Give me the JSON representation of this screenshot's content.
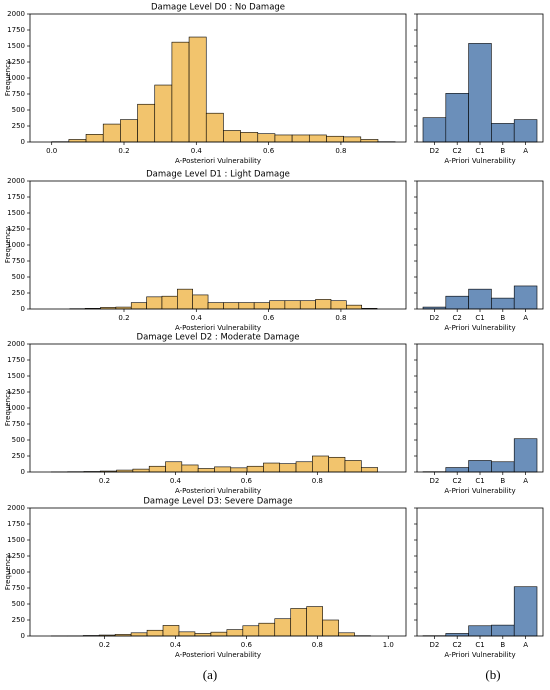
{
  "chart_data": [
    {
      "type": "histogram",
      "title": "Damage Level D0 : No Damage",
      "xlabel": "A-Posteriori Vulnerability",
      "ylabel": "Frequency",
      "color": "#f2c46d",
      "bins": [
        0,
        0.0475,
        0.095,
        0.1425,
        0.19,
        0.2375,
        0.285,
        0.3325,
        0.38,
        0.4275,
        0.475,
        0.5225,
        0.57,
        0.6175,
        0.665,
        0.7125,
        0.76,
        0.8075,
        0.855,
        0.9025,
        0.95
      ],
      "values": [
        5,
        40,
        120,
        280,
        350,
        590,
        890,
        1560,
        1640,
        450,
        180,
        150,
        130,
        110,
        110,
        110,
        90,
        80,
        40,
        5
      ],
      "xlim": [
        -0.06,
        0.98
      ],
      "xticks": [
        {
          "value": 0,
          "label": "0.0"
        },
        0.2,
        0.4,
        0.6,
        0.8
      ],
      "ylim": [
        0,
        2000
      ],
      "yticks": [
        0,
        250,
        500,
        750,
        1000,
        1250,
        1500,
        1750,
        2000
      ]
    },
    {
      "type": "bar",
      "xlabel": "A-Priori Vulnerability",
      "color": "#6b8fba",
      "categories": [
        "D2",
        "C2",
        "C1",
        "B",
        "A"
      ],
      "values": [
        380,
        760,
        1540,
        290,
        350
      ],
      "ylim": [
        0,
        2000
      ],
      "yticks": [
        0,
        250,
        500,
        750,
        1000,
        1250,
        1500,
        1750,
        2000
      ],
      "ytick_labels": false
    },
    {
      "type": "histogram",
      "title": "Damage Level D1 : Light Damage",
      "xlabel": "A-Posteriori Vulnerability",
      "ylabel": "Frequency",
      "color": "#f2c46d",
      "bins": [
        0.05,
        0.0925,
        0.135,
        0.1775,
        0.22,
        0.2625,
        0.305,
        0.3475,
        0.39,
        0.4325,
        0.475,
        0.5175,
        0.56,
        0.6025,
        0.645,
        0.6875,
        0.73,
        0.7725,
        0.815,
        0.8575,
        0.9
      ],
      "values": [
        5,
        10,
        25,
        30,
        100,
        190,
        200,
        310,
        220,
        100,
        100,
        100,
        100,
        130,
        130,
        130,
        150,
        130,
        60,
        10
      ],
      "xlim": [
        -0.06,
        0.98
      ],
      "xticks": [
        0.2,
        0.4,
        0.6,
        0.8
      ],
      "ylim": [
        0,
        2000
      ],
      "yticks": [
        0,
        250,
        500,
        750,
        1000,
        1250,
        1500,
        1750,
        2000
      ]
    },
    {
      "type": "bar",
      "xlabel": "A-Priori Vulnerability",
      "color": "#6b8fba",
      "categories": [
        "D2",
        "C2",
        "C1",
        "B",
        "A"
      ],
      "values": [
        30,
        200,
        310,
        170,
        360
      ],
      "ylim": [
        0,
        2000
      ],
      "yticks": [
        0,
        250,
        500,
        750,
        1000,
        1250,
        1500,
        1750,
        2000
      ],
      "ytick_labels": false
    },
    {
      "type": "histogram",
      "title": "Damage Level D2 : Moderate Damage",
      "xlabel": "A-Posteriori Vulnerability",
      "ylabel": "Frequency",
      "color": "#f2c46d",
      "bins": [
        0.05,
        0.096,
        0.142,
        0.188,
        0.234,
        0.28,
        0.326,
        0.372,
        0.418,
        0.464,
        0.51,
        0.556,
        0.602,
        0.648,
        0.694,
        0.74,
        0.786,
        0.832,
        0.878,
        0.924,
        0.97
      ],
      "values": [
        3,
        5,
        8,
        15,
        30,
        45,
        90,
        160,
        110,
        55,
        80,
        65,
        90,
        140,
        130,
        160,
        250,
        230,
        180,
        70
      ],
      "xlim": [
        -0.01,
        1.05
      ],
      "xticks": [
        0.2,
        0.4,
        0.6,
        0.8
      ],
      "ylim": [
        0,
        2000
      ],
      "yticks": [
        0,
        250,
        500,
        750,
        1000,
        1250,
        1500,
        1750,
        2000
      ]
    },
    {
      "type": "bar",
      "xlabel": "A-Priori Vulnerability",
      "color": "#6b8fba",
      "categories": [
        "D2",
        "C2",
        "C1",
        "B",
        "A"
      ],
      "values": [
        5,
        70,
        180,
        160,
        520
      ],
      "ylim": [
        0,
        2000
      ],
      "yticks": [
        0,
        250,
        500,
        750,
        1000,
        1250,
        1500,
        1750,
        2000
      ],
      "ytick_labels": false
    },
    {
      "type": "histogram",
      "title": "Damage Level D3: Severe Damage",
      "xlabel": "A-Posteriori Vulnerability",
      "ylabel": "Frequency",
      "color": "#f2c46d",
      "bins": [
        0.05,
        0.095,
        0.14,
        0.185,
        0.23,
        0.275,
        0.32,
        0.365,
        0.41,
        0.455,
        0.5,
        0.545,
        0.59,
        0.635,
        0.68,
        0.725,
        0.77,
        0.815,
        0.86,
        0.905,
        0.95
      ],
      "values": [
        2,
        3,
        8,
        15,
        25,
        50,
        90,
        165,
        65,
        40,
        60,
        100,
        160,
        200,
        270,
        430,
        460,
        250,
        50,
        5
      ],
      "xlim": [
        -0.01,
        1.05
      ],
      "xticks": [
        0.2,
        0.4,
        0.6,
        0.8,
        {
          "value": 1,
          "label": "1.0"
        }
      ],
      "ylim": [
        0,
        2000
      ],
      "yticks": [
        0,
        250,
        500,
        750,
        1000,
        1250,
        1500,
        1750,
        2000
      ]
    },
    {
      "type": "bar",
      "xlabel": "A-Priori Vulnerability",
      "color": "#6b8fba",
      "categories": [
        "D2",
        "C2",
        "C1",
        "B",
        "A"
      ],
      "values": [
        5,
        40,
        160,
        170,
        770
      ],
      "ylim": [
        0,
        2000
      ],
      "yticks": [
        0,
        250,
        500,
        750,
        1000,
        1250,
        1500,
        1750,
        2000
      ],
      "ytick_labels": false
    }
  ],
  "panel_labels": [
    "(a)",
    "(b)"
  ]
}
